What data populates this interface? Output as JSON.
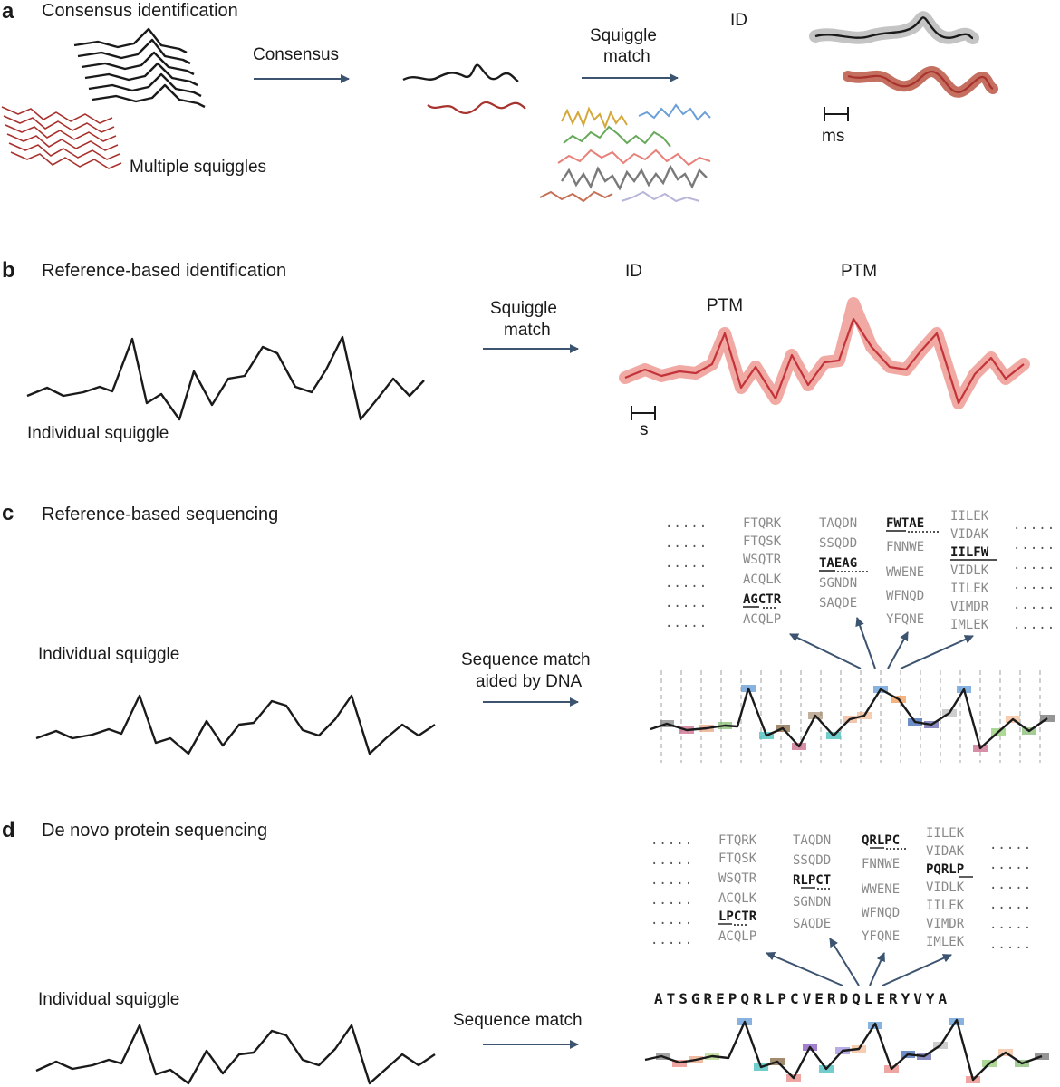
{
  "panels": {
    "a": {
      "letter": "a",
      "title": "Consensus identification",
      "consensus_label": "Consensus",
      "match_label_1": "Squiggle",
      "match_label_2": "match",
      "id_label": "ID",
      "scale_label": "ms",
      "multi_label": "Multiple squiggles"
    },
    "b": {
      "letter": "b",
      "title": "Reference-based identification",
      "match_label_1": "Squiggle",
      "match_label_2": "match",
      "id_label": "ID",
      "ptm_label_1": "PTM",
      "ptm_label_2": "PTM",
      "scale_label": "s",
      "squiggle_label": "Individual squiggle"
    },
    "c": {
      "letter": "c",
      "title": "Reference-based sequencing",
      "squiggle_label": "Individual squiggle",
      "match_label_1": "Sequence match",
      "match_label_2": "aided by DNA",
      "dots": ".....",
      "columns": [
        [
          "FTQRK",
          "FTQSK",
          "WSQTR",
          "ACQLK",
          "AGCTR",
          "ACQLP"
        ],
        [
          "TAQDN",
          "SSQDD",
          "TAEAG",
          "SGNDN",
          "SAQDE"
        ],
        [
          "FWTAE",
          "FNNWE",
          "WWENE",
          "WFNQD",
          "YFQNE"
        ],
        [
          "IILEK",
          "VIDAK",
          "IILFW",
          "VIDLK",
          "IILEK",
          "VIMDR",
          "IMLEK"
        ]
      ]
    },
    "d": {
      "letter": "d",
      "title": "De novo protein sequencing",
      "squiggle_label": "Individual squiggle",
      "match_label": "Sequence match",
      "sequence": "ATSGREPQRLPCVERDQLERYVYA",
      "dots": ".....",
      "columns": [
        [
          "FTQRK",
          "FTQSK",
          "WSQTR",
          "ACQLK",
          "LPCTR",
          "ACQLP"
        ],
        [
          "TAQDN",
          "SSQDD",
          "RLPCT",
          "SGNDN",
          "SAQDE"
        ],
        [
          "QRLPC",
          "FNNWE",
          "WWENE",
          "WFNQD",
          "YFQNE"
        ],
        [
          "IILEK",
          "VIDAK",
          "PQRLP",
          "VIDLK",
          "IILEK",
          "VIMDR",
          "IMLEK"
        ]
      ]
    }
  },
  "colors": {
    "arrow": "#3d5470",
    "squiggle": "#1a1a1a",
    "red": "#a8322d",
    "ptm_band": "#ef9a93",
    "grey_band": "#c4c4c4",
    "palette": [
      "#d4a93c",
      "#6a9fd8",
      "#67a95a",
      "#e8807a",
      "#7a7a7a",
      "#c56f55",
      "#b7b5d8"
    ]
  }
}
